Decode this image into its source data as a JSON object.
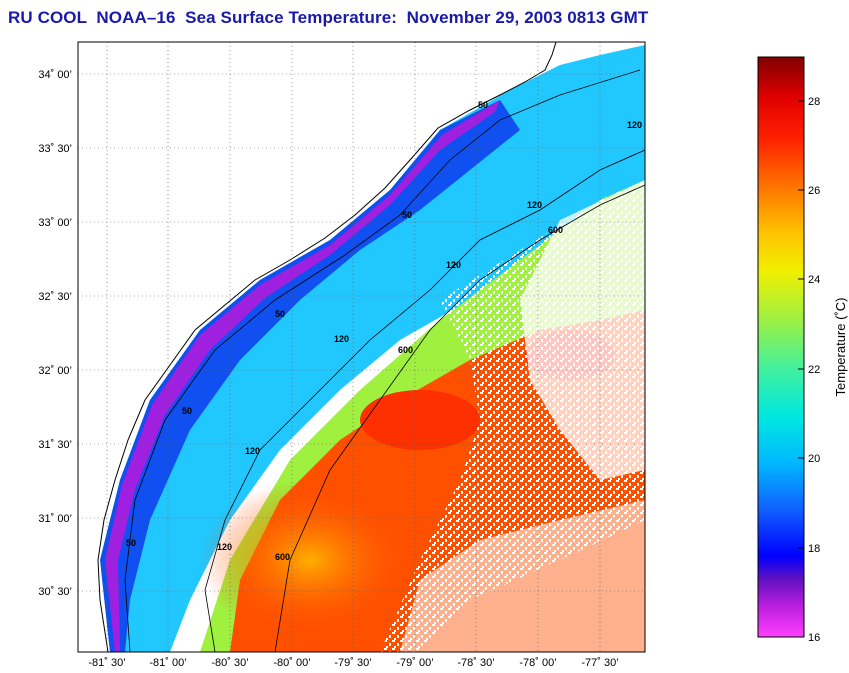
{
  "title": "RU COOL  NOAA–16  Sea Surface Temperature:  November 29, 2003 0813 GMT",
  "map": {
    "lat_ticks": [
      "34˚ 00’",
      "33˚ 30’",
      "33˚ 00’",
      "32˚ 30’",
      "32˚ 00’",
      "31˚ 30’",
      "31˚ 00’",
      "30˚ 30’"
    ],
    "lon_ticks": [
      "-81˚ 30’",
      "-81˚ 00’",
      "-80˚ 30’",
      "-80˚ 00’",
      "-79˚ 30’",
      "-79˚ 00’",
      "-78˚ 30’",
      "-78˚ 00’",
      "-77˚ 30’"
    ],
    "contour_labels": [
      "50",
      "50",
      "50",
      "50",
      "50",
      "120",
      "120",
      "120",
      "120",
      "120",
      "120",
      "600",
      "600",
      "600"
    ],
    "land_color": "#ffffff",
    "cloud_color": "#ffffff"
  },
  "colorbar": {
    "label": "Temperature (˚C)",
    "min": 16,
    "max": 29,
    "tick_labels": [
      "28",
      "26",
      "24",
      "22",
      "20",
      "18",
      "16"
    ]
  }
}
